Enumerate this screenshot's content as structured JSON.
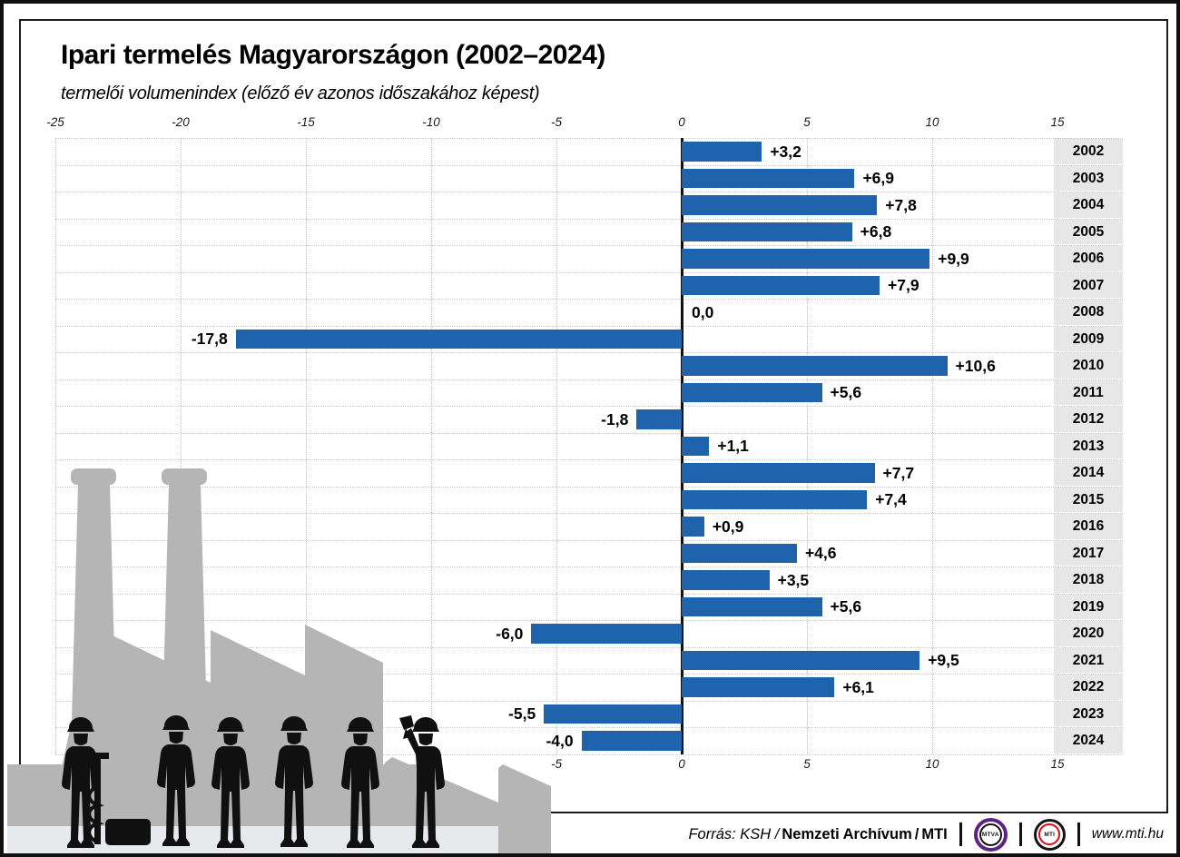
{
  "page": {
    "title": "Ipari termelés Magyarországon (2002–2024)",
    "subtitle": "termelői volumenindex (előző év azonos időszakához képest)"
  },
  "chart_data": {
    "type": "bar",
    "orientation": "horizontal",
    "title": "Ipari termelés Magyarországon (2002–2024)",
    "subtitle": "termelői volumenindex (előző év azonos időszakához képest)",
    "categories": [
      "2002",
      "2003",
      "2004",
      "2005",
      "2006",
      "2007",
      "2008",
      "2009",
      "2010",
      "2011",
      "2012",
      "2013",
      "2014",
      "2015",
      "2016",
      "2017",
      "2018",
      "2019",
      "2020",
      "2021",
      "2022",
      "2023",
      "2024"
    ],
    "values": [
      3.2,
      6.9,
      7.8,
      6.8,
      9.9,
      7.9,
      0.0,
      -17.8,
      10.6,
      5.6,
      -1.8,
      1.1,
      7.7,
      7.4,
      0.9,
      4.6,
      3.5,
      5.6,
      -6.0,
      9.5,
      6.1,
      -5.5,
      -4.0
    ],
    "value_labels": [
      "+3,2",
      "+6,9",
      "+7,8",
      "+6,8",
      "+9,9",
      "+7,9",
      "0,0",
      "-17,8",
      "+10,6",
      "+5,6",
      "-1,8",
      "+1,1",
      "+7,7",
      "+7,4",
      "+0,9",
      "+4,6",
      "+3,5",
      "+5,6",
      "-6,0",
      "+9,5",
      "+6,1",
      "-5,5",
      "-4,0"
    ],
    "ticks_top": [
      -25,
      -20,
      -15,
      -10,
      -5,
      0,
      5,
      10,
      15
    ],
    "ticks_bottom": [
      -5,
      0,
      5,
      10,
      15
    ],
    "xlim": [
      -25,
      17.6
    ],
    "grid": "dotted",
    "legend": "none",
    "bar_color": "#2063ad"
  },
  "footer": {
    "source": {
      "prefix": "Forrás: KSH /",
      "archive": "Nemzeti Archívum",
      "sep": "/",
      "agency": "MTI"
    },
    "logos": [
      {
        "label": "MTVA",
        "ring_color": "#5c2483"
      },
      {
        "label": "MTI",
        "ring_color": "#e30613"
      }
    ],
    "website": "www.mti.hu"
  },
  "colors": {
    "bar": "#2063ad",
    "year_cell_bg": "#e7e7e7",
    "factory_gray": "#b5b5b5",
    "band_light": "#e8e9ec",
    "silhouette_black": "#101010",
    "mtva_purple": "#5c2483",
    "mti_red": "#e30613"
  }
}
